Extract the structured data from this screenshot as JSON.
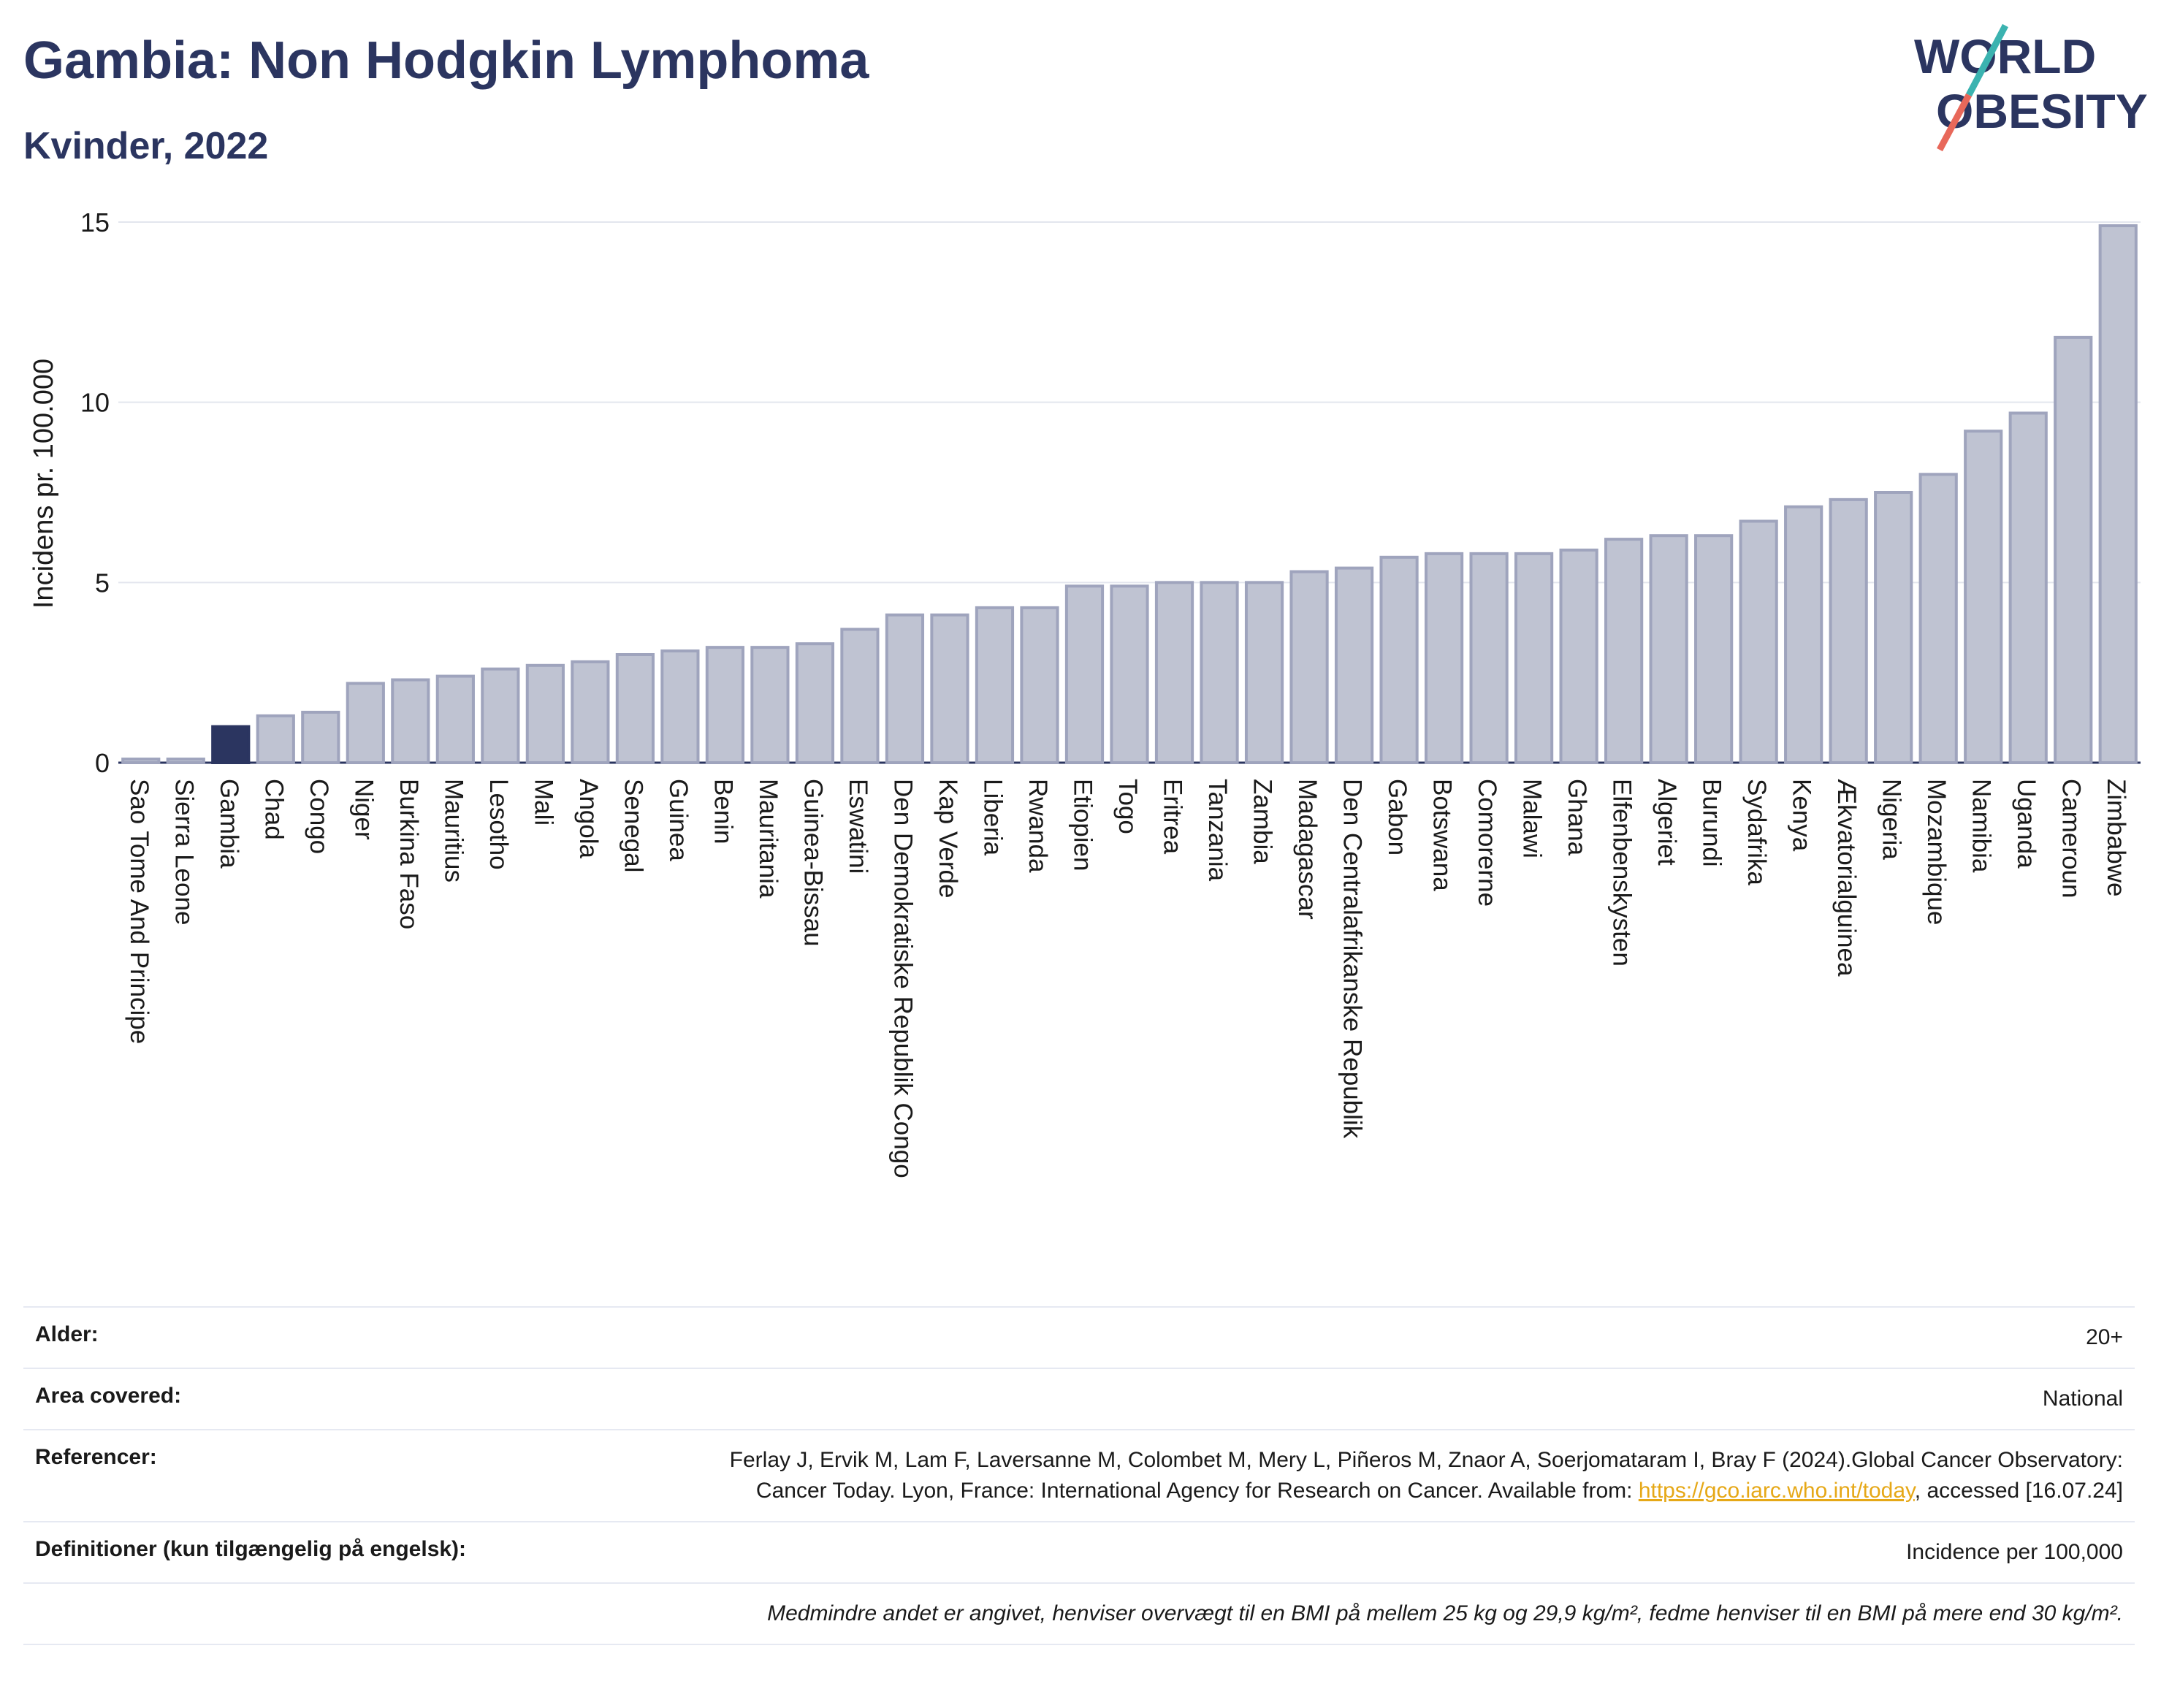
{
  "header": {
    "title": "Gambia: Non Hodgkin Lymphoma",
    "subtitle": "Kvinder, 2022"
  },
  "logo": {
    "line1": "WORLD",
    "line2": "OBESITY",
    "colors": {
      "text": "#2b3560",
      "slash_teal": "#3bb3b0",
      "slash_coral": "#e8685a"
    }
  },
  "chart_data": {
    "type": "bar",
    "title": "Gambia: Non Hodgkin Lymphoma",
    "subtitle": "Kvinder, 2022",
    "xlabel": "",
    "ylabel": "Incidens pr. 100.000",
    "ylim": [
      0,
      15
    ],
    "yticks": [
      0,
      5,
      10,
      15
    ],
    "grid": true,
    "highlight": "Gambia",
    "colors": {
      "bar": "#bfc3d2",
      "bar_edge": "#9fa4bd",
      "highlight": "#2b3560"
    },
    "categories": [
      "Sao Tome And Principe",
      "Sierra Leone",
      "Gambia",
      "Chad",
      "Congo",
      "Niger",
      "Burkina Faso",
      "Mauritius",
      "Lesotho",
      "Mali",
      "Angola",
      "Senegal",
      "Guinea",
      "Benin",
      "Mauritania",
      "Guinea-Bissau",
      "Eswatini",
      "Den Demokratiske Republik Congo",
      "Kap Verde",
      "Liberia",
      "Rwanda",
      "Etiopien",
      "Togo",
      "Eritrea",
      "Tanzania",
      "Zambia",
      "Madagascar",
      "Den Centralafrikanske Republik",
      "Gabon",
      "Botswana",
      "Comorerne",
      "Malawi",
      "Ghana",
      "Elfenbenskysten",
      "Algeriet",
      "Burundi",
      "Sydafrika",
      "Kenya",
      "Ækvatorialguinea",
      "Nigeria",
      "Mozambique",
      "Namibia",
      "Uganda",
      "Cameroun",
      "Zimbabwe"
    ],
    "values": [
      0.1,
      0.1,
      1.0,
      1.3,
      1.4,
      2.2,
      2.3,
      2.4,
      2.6,
      2.7,
      2.8,
      3.0,
      3.1,
      3.2,
      3.2,
      3.3,
      3.7,
      4.1,
      4.1,
      4.3,
      4.3,
      4.9,
      4.9,
      5.0,
      5.0,
      5.0,
      5.3,
      5.4,
      5.7,
      5.8,
      5.8,
      5.8,
      5.9,
      6.2,
      6.3,
      6.3,
      6.7,
      7.1,
      7.3,
      7.5,
      8.0,
      9.2,
      9.7,
      11.8,
      14.9
    ]
  },
  "meta": {
    "age_label": "Alder:",
    "age_value": "20+",
    "area_label": "Area covered:",
    "area_value": "National",
    "ref_label": "Referencer:",
    "ref_text_1": "Ferlay J, Ervik M, Lam F, Laversanne M, Colombet M, Mery L, Piñeros M, Znaor A, Soerjomataram I, Bray F (2024).Global Cancer Observatory: Cancer Today. Lyon, France: International Agency for Research on Cancer. Available from: ",
    "ref_link": "https://gco.iarc.who.int/today",
    "ref_text_2": ", accessed [16.07.24]",
    "def_label": "Definitioner (kun tilgængelig på engelsk):",
    "def_value": "Incidence per 100,000",
    "note": "Medmindre andet er angivet, henviser overvægt til en BMI på mellem 25 kg og 29,9 kg/m², fedme henviser til en BMI på mere end 30 kg/m²."
  }
}
